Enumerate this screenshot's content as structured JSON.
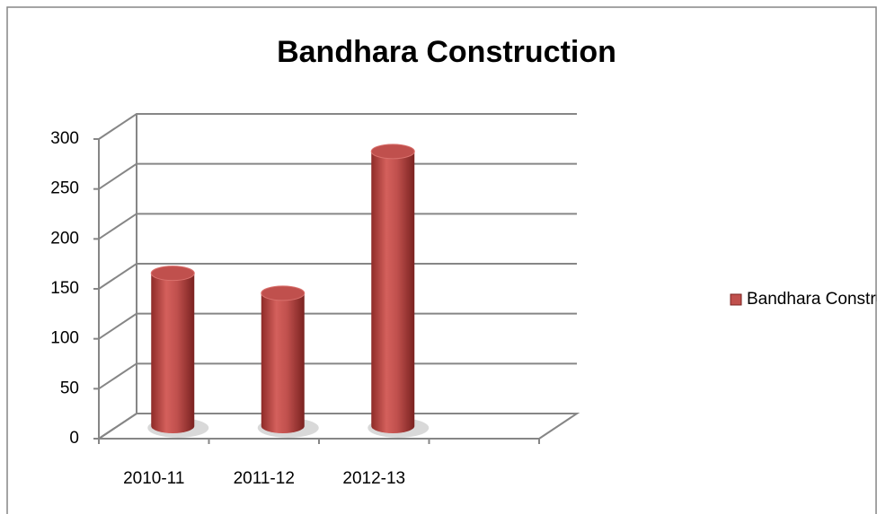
{
  "chart_data": {
    "type": "bar",
    "title": "Bandhara Construction",
    "categories": [
      "2010-11",
      "2011-12",
      "2012-13",
      null
    ],
    "series": [
      {
        "name": "Bandhara Construction",
        "color": "#c0504d",
        "values": [
          153,
          133,
          275,
          null
        ]
      }
    ],
    "ylim": [
      0,
      300
    ],
    "yticks": [
      0,
      50,
      100,
      150,
      200,
      250,
      300
    ],
    "grid": true,
    "legend": "right"
  }
}
